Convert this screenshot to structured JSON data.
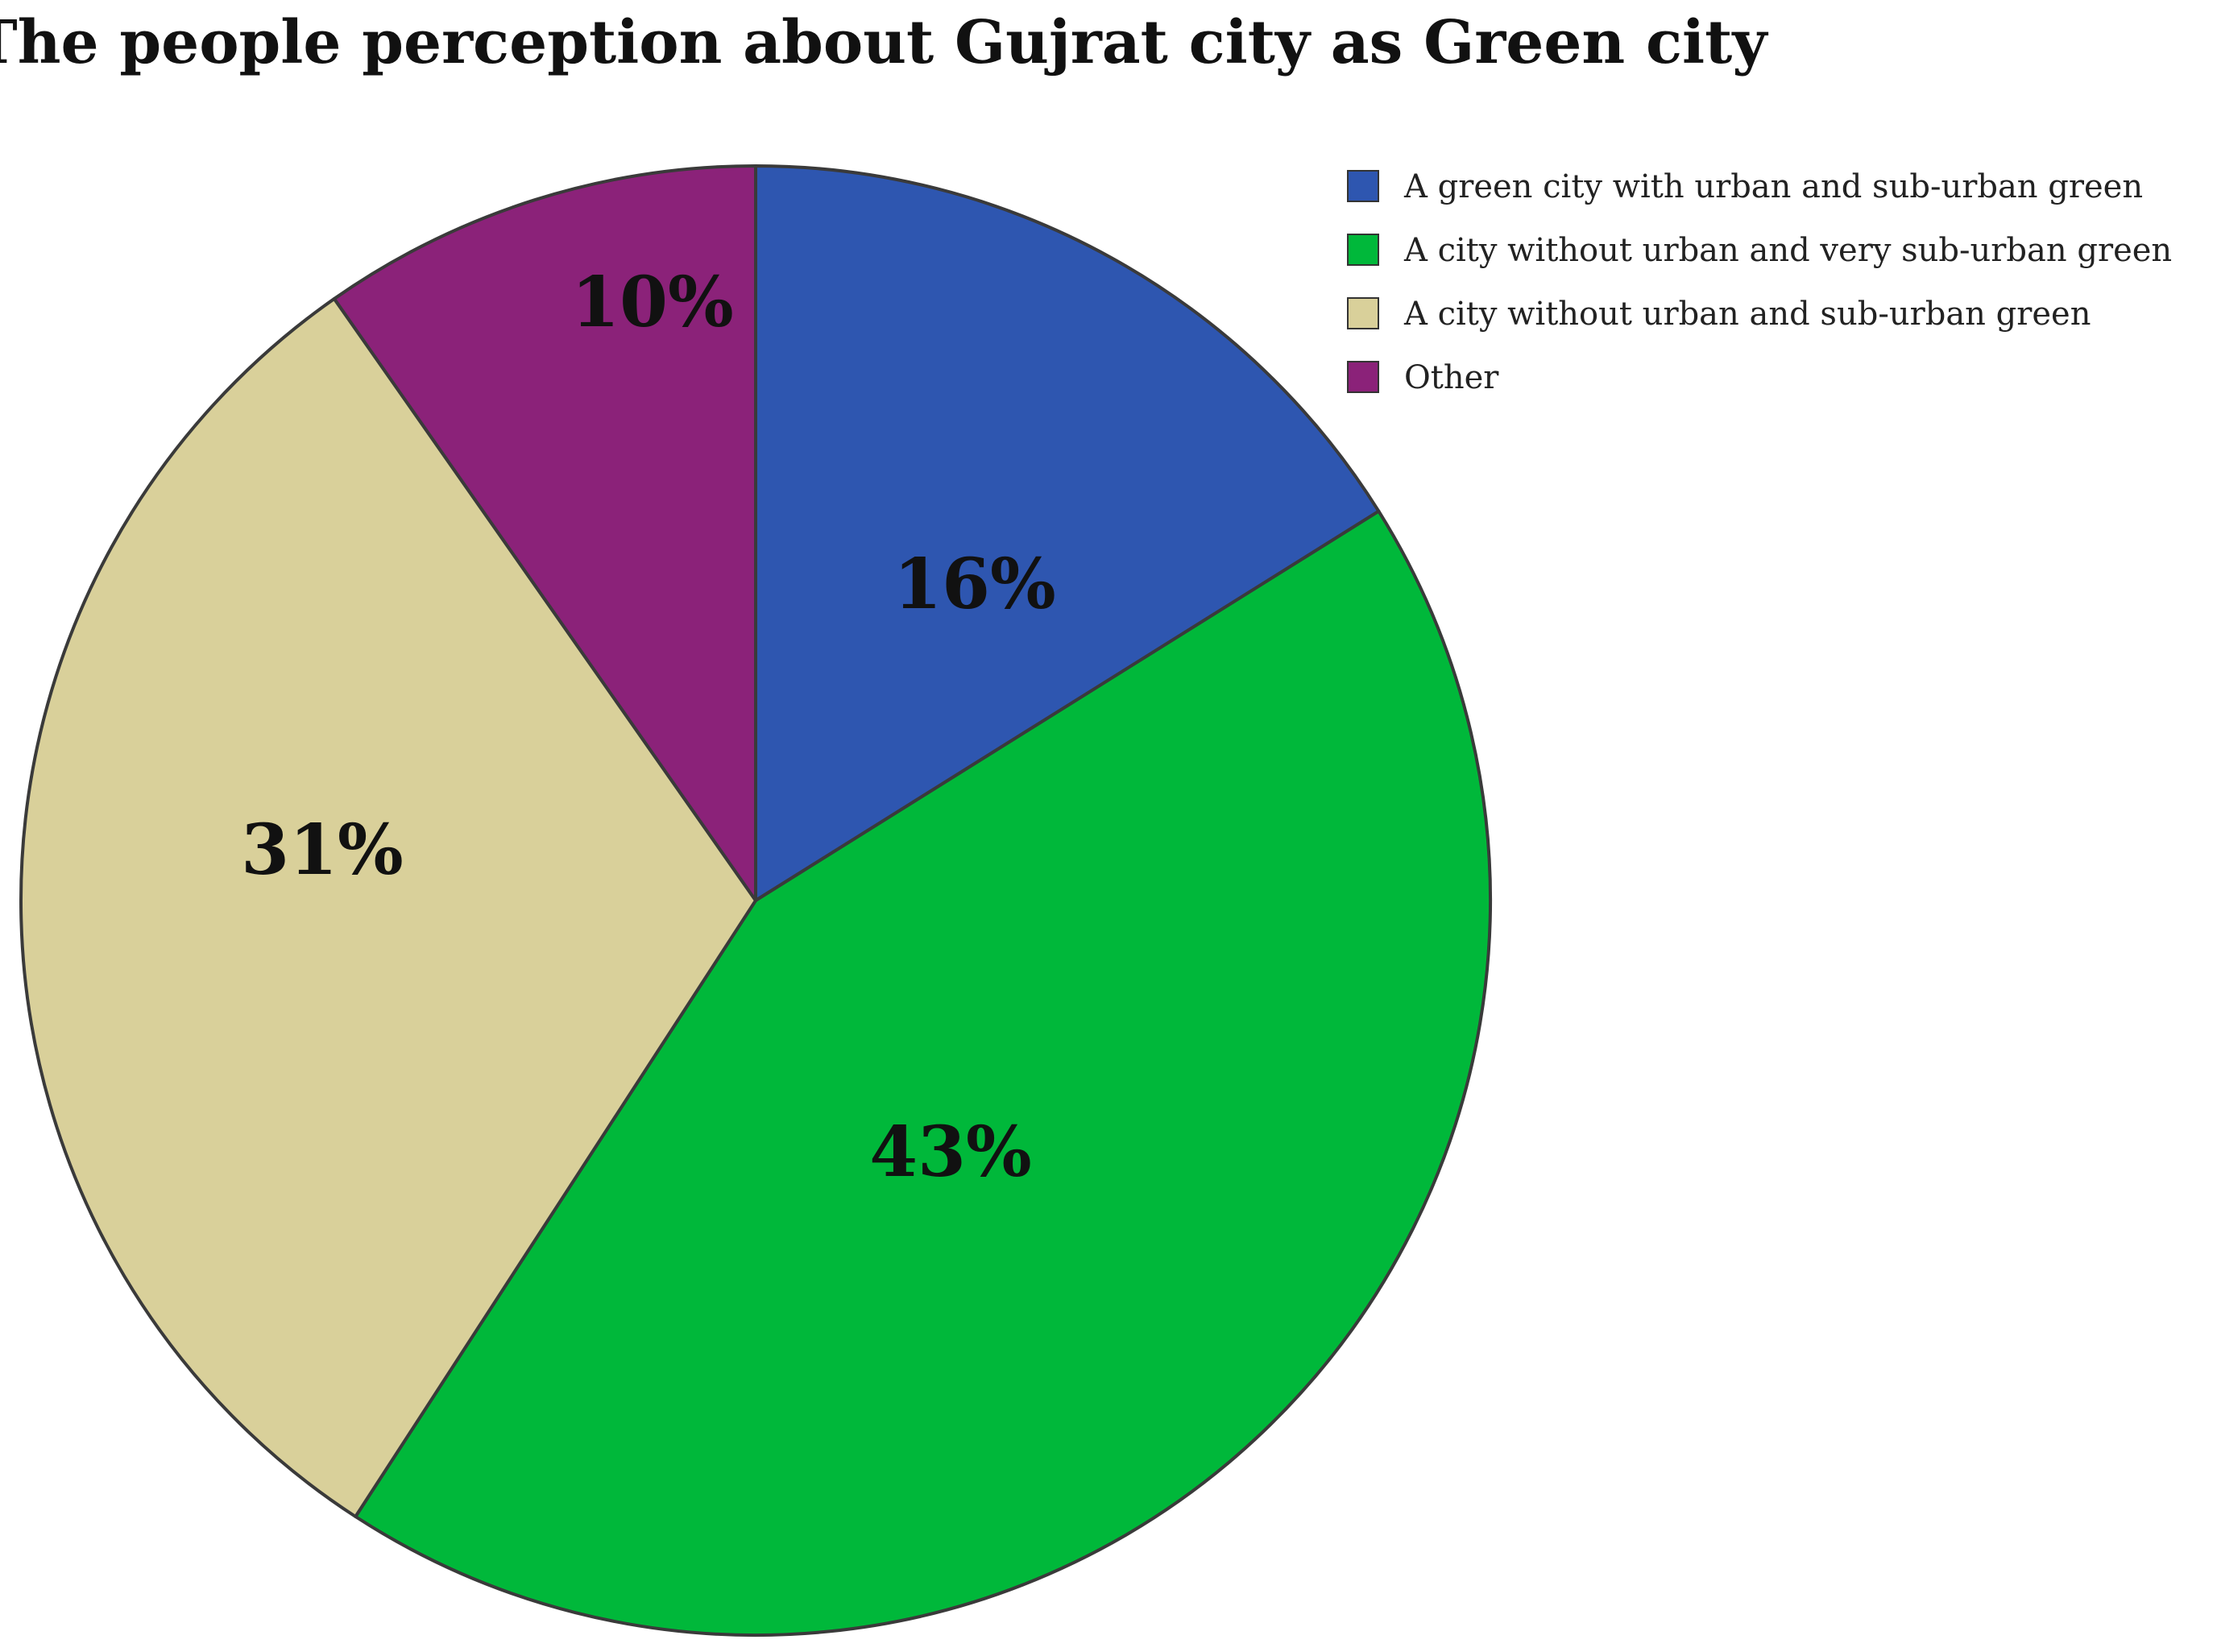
{
  "chart_data": {
    "type": "pie",
    "title": "The people perception about Gujrat city as Green city",
    "start_angle_deg": 0,
    "direction": "clockwise",
    "legend_position": "top-right",
    "slices": [
      {
        "name": "A green city with urban and sub-urban green",
        "value": 16,
        "label": "16%",
        "color": "#2E56B0"
      },
      {
        "name": "A city without urban and very sub-urban green",
        "value": 43,
        "label": "43%",
        "color": "#00B83A"
      },
      {
        "name": "A city without urban and sub-urban green",
        "value": 31,
        "label": "31%",
        "color": "#D9D09A"
      },
      {
        "name": "Other",
        "value": 10,
        "label": "10%",
        "color": "#8B2279"
      }
    ],
    "slice_angles_deg": [
      58,
      155,
      112,
      35
    ]
  }
}
